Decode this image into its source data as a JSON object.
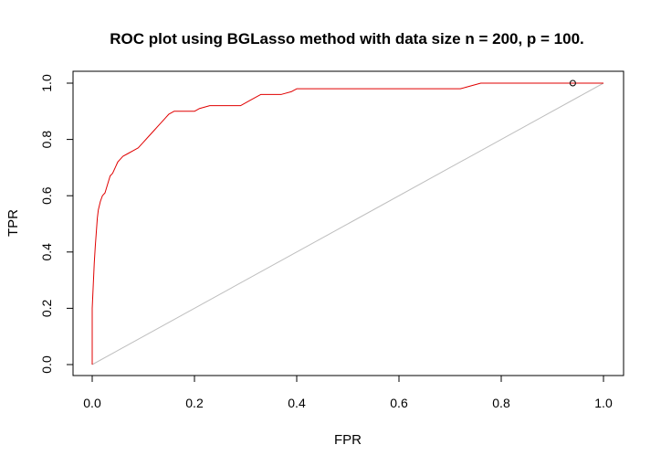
{
  "chart_data": {
    "type": "line",
    "title": "ROC plot using BGLasso method with data size n = 200, p = 100.",
    "xlabel": "FPR",
    "ylabel": "TPR",
    "xlim": [
      0,
      1
    ],
    "ylim": [
      0,
      1
    ],
    "x_ticks": [
      "0.0",
      "0.2",
      "0.4",
      "0.6",
      "0.8",
      "1.0"
    ],
    "y_ticks": [
      "0.0",
      "0.2",
      "0.4",
      "0.6",
      "0.8",
      "1.0"
    ],
    "grid": false,
    "legend": "none",
    "series": [
      {
        "color": "#e00000",
        "x": [
          0,
          0,
          0.002,
          0.004,
          0.006,
          0.008,
          0.01,
          0.012,
          0.016,
          0.02,
          0.025,
          0.03,
          0.035,
          0.04,
          0.045,
          0.05,
          0.055,
          0.06,
          0.07,
          0.08,
          0.09,
          0.1,
          0.11,
          0.12,
          0.13,
          0.14,
          0.15,
          0.16,
          0.18,
          0.2,
          0.21,
          0.23,
          0.25,
          0.29,
          0.31,
          0.33,
          0.37,
          0.39,
          0.4,
          0.5,
          0.6,
          0.72,
          0.73,
          0.76,
          0.8,
          0.9,
          1.0
        ],
        "y": [
          0,
          0.2,
          0.28,
          0.36,
          0.42,
          0.47,
          0.52,
          0.55,
          0.58,
          0.6,
          0.61,
          0.64,
          0.67,
          0.68,
          0.7,
          0.72,
          0.73,
          0.74,
          0.75,
          0.76,
          0.77,
          0.79,
          0.81,
          0.83,
          0.85,
          0.87,
          0.89,
          0.9,
          0.9,
          0.9,
          0.91,
          0.92,
          0.92,
          0.92,
          0.94,
          0.96,
          0.96,
          0.97,
          0.98,
          0.98,
          0.98,
          0.98,
          0.985,
          1.0,
          1.0,
          1.0,
          1.0
        ]
      },
      {
        "color": "#bebebe",
        "x": [
          0,
          1
        ],
        "y": [
          0,
          1
        ]
      }
    ],
    "marker": {
      "x": 0.94,
      "y": 1.0,
      "shape": "open-circle"
    }
  }
}
